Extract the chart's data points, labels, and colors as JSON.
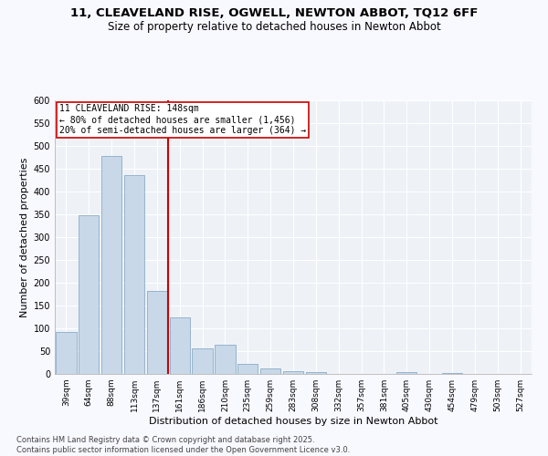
{
  "title1": "11, CLEAVELAND RISE, OGWELL, NEWTON ABBOT, TQ12 6FF",
  "title2": "Size of property relative to detached houses in Newton Abbot",
  "xlabel": "Distribution of detached houses by size in Newton Abbot",
  "ylabel": "Number of detached properties",
  "bar_color": "#c8d8e8",
  "bar_edge_color": "#7aa0c0",
  "vline_color": "#cc0000",
  "vline_x": 4.5,
  "annotation_text": "11 CLEAVELAND RISE: 148sqm\n← 80% of detached houses are smaller (1,456)\n20% of semi-detached houses are larger (364) →",
  "annotation_box_color": "#ffffff",
  "annotation_box_edge": "#cc0000",
  "categories": [
    "39sqm",
    "64sqm",
    "88sqm",
    "113sqm",
    "137sqm",
    "161sqm",
    "186sqm",
    "210sqm",
    "235sqm",
    "259sqm",
    "283sqm",
    "308sqm",
    "332sqm",
    "357sqm",
    "381sqm",
    "405sqm",
    "430sqm",
    "454sqm",
    "479sqm",
    "503sqm",
    "527sqm"
  ],
  "values": [
    93,
    348,
    478,
    437,
    183,
    125,
    57,
    65,
    22,
    12,
    6,
    4,
    1,
    0,
    0,
    4,
    0,
    3,
    0,
    0,
    0
  ],
  "ylim": [
    0,
    600
  ],
  "yticks": [
    0,
    50,
    100,
    150,
    200,
    250,
    300,
    350,
    400,
    450,
    500,
    550,
    600
  ],
  "background_color": "#eef2f7",
  "grid_color": "#ffffff",
  "fig_bg": "#f8f8ff",
  "footer1": "Contains HM Land Registry data © Crown copyright and database right 2025.",
  "footer2": "Contains public sector information licensed under the Open Government Licence v3.0.",
  "title_fontsize": 9.5,
  "subtitle_fontsize": 8.5,
  "tick_fontsize": 6.5,
  "ylabel_fontsize": 8,
  "xlabel_fontsize": 8,
  "footer_fontsize": 6,
  "annot_fontsize": 7
}
